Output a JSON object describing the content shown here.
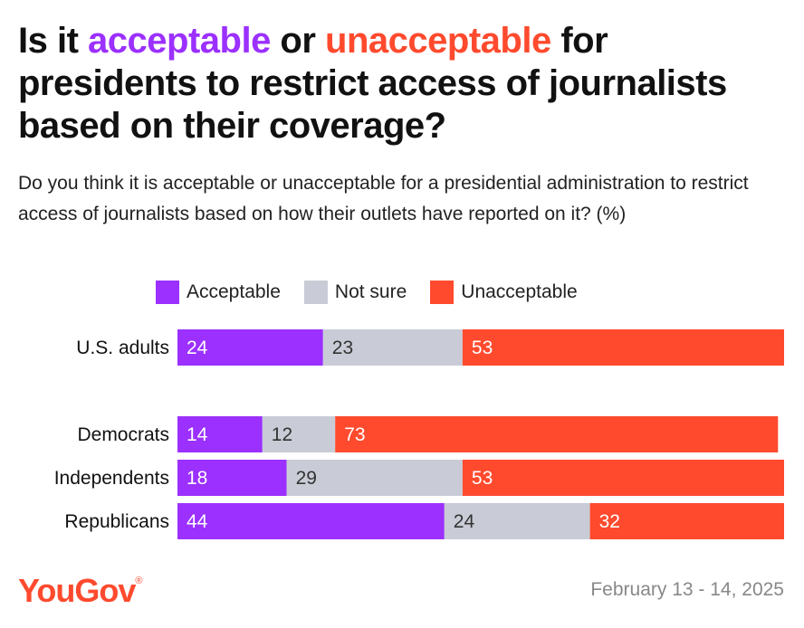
{
  "title": {
    "part1": "Is it ",
    "acceptable": "acceptable",
    "part2": " or ",
    "unacceptable": "unacceptable",
    "part3": " for presidents to restrict access of journalists based on their coverage?"
  },
  "subtitle": "Do you think it is acceptable or unacceptable for a presidential administration to restrict access of journalists based on how their outlets have reported on it? (%)",
  "legend": [
    {
      "label": "Acceptable",
      "color": "#9b30ff"
    },
    {
      "label": "Not sure",
      "color": "#c9ccd6"
    },
    {
      "label": "Unacceptable",
      "color": "#ff4a2e"
    }
  ],
  "chart_data": {
    "type": "bar",
    "orientation": "horizontal",
    "stacked": true,
    "categories": [
      "U.S. adults",
      "Democrats",
      "Independents",
      "Republicans"
    ],
    "series": [
      {
        "name": "Acceptable",
        "color": "#9b30ff",
        "values": [
          24,
          14,
          18,
          44
        ]
      },
      {
        "name": "Not sure",
        "color": "#c9ccd6",
        "values": [
          23,
          12,
          29,
          24
        ]
      },
      {
        "name": "Unacceptable",
        "color": "#ff4a2e",
        "values": [
          53,
          73,
          53,
          32
        ]
      }
    ],
    "title": "Is it acceptable or unacceptable for presidents to restrict access of journalists based on their coverage?",
    "xlabel": "",
    "ylabel": "",
    "xlim": [
      0,
      100
    ],
    "grid": false
  },
  "footer": {
    "brand": "YouGov",
    "trademark": "®",
    "date": "February 13 - 14, 2025"
  }
}
